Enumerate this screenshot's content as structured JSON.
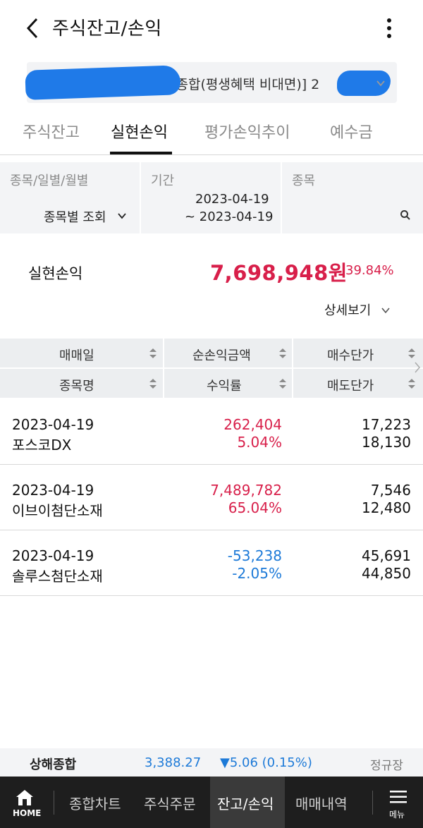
{
  "header": {
    "title": "주식잔고/손익"
  },
  "account": {
    "label": "1 [종합(평생혜택 비대면)] 2"
  },
  "tabs": [
    {
      "label": "주식잔고",
      "active": false
    },
    {
      "label": "실현손익",
      "active": true
    },
    {
      "label": "평가손익추이",
      "active": false
    },
    {
      "label": "예수금",
      "active": false
    }
  ],
  "filters": {
    "type_label": "종목/일별/월별",
    "type_value": "종목별 조회",
    "period_label": "기간",
    "period_start": "2023-04-19",
    "period_end": "~ 2023-04-19",
    "stock_label": "종목"
  },
  "summary": {
    "label": "실현손익",
    "amount": "7,698,948원",
    "rate": "39.84%",
    "detail_label": "상세보기"
  },
  "table": {
    "headers_row1": [
      "매매일",
      "순손익금액",
      "매수단가"
    ],
    "headers_row2": [
      "종목명",
      "수익률",
      "매도단가"
    ],
    "rows": [
      {
        "date": "2023-04-19",
        "name": "포스코DX",
        "pl": "262,404",
        "rate": "5.04%",
        "buy": "17,223",
        "sell": "18,130",
        "sign": "pos"
      },
      {
        "date": "2023-04-19",
        "name": "이브이첨단소재",
        "pl": "7,489,782",
        "rate": "65.04%",
        "buy": "7,546",
        "sell": "12,480",
        "sign": "pos"
      },
      {
        "date": "2023-04-19",
        "name": "솔루스첨단소재",
        "pl": "-53,238",
        "rate": "-2.05%",
        "buy": "45,691",
        "sell": "44,850",
        "sign": "neg"
      }
    ]
  },
  "ticker": {
    "name": "상해종합",
    "value": "3,388.27",
    "change": "▼5.06 (0.15%)",
    "session": "정규장"
  },
  "nav": {
    "home": "HOME",
    "items": [
      "종합차트",
      "주식주문",
      "잔고/손익",
      "매매내역"
    ],
    "menu": "메뉴"
  },
  "colors": {
    "positive": "#d81f4a",
    "negative": "#1d7ad8",
    "redaction": "#1f7ae8"
  }
}
